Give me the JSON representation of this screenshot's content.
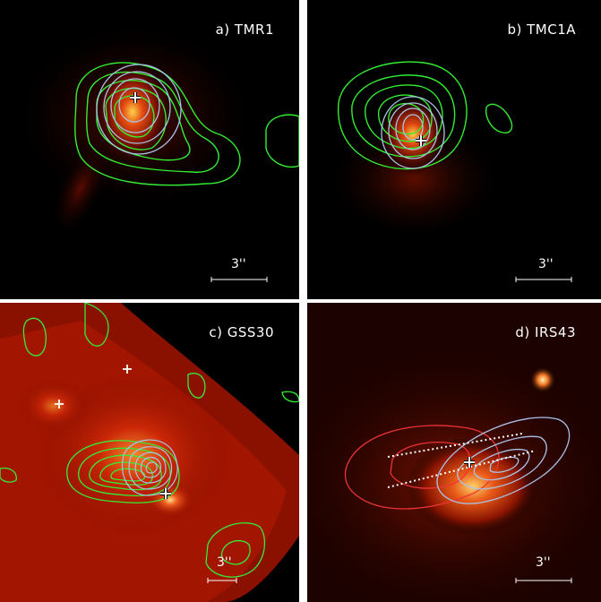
{
  "panels": [
    {
      "label": "a) TMR1",
      "scale_label": "3''"
    },
    {
      "label": "b) TMC1A",
      "scale_label": "3''"
    },
    {
      "label": "c) GSS30",
      "scale_label": "3''"
    },
    {
      "label": "d) IRS43",
      "scale_label": "3''"
    }
  ],
  "colors": {
    "background": "#000000",
    "separator": "#ffffff",
    "contour_green": "#33ee33",
    "contour_blue": "#a9c3e8",
    "contour_red": "#ee3333",
    "emission": "#cc2200"
  }
}
